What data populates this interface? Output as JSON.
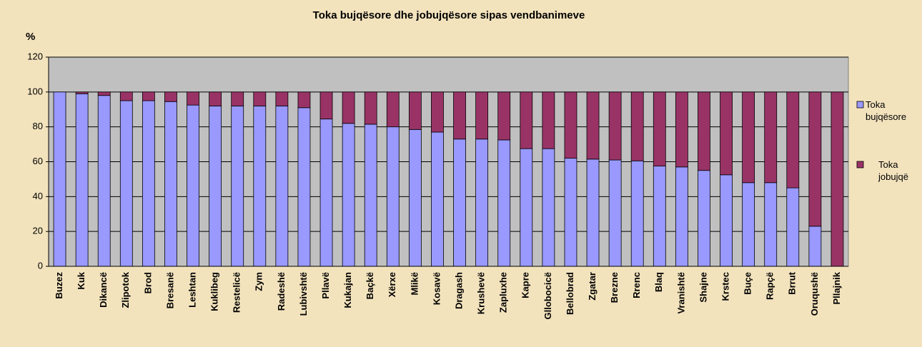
{
  "chart_data": {
    "type": "stacked_bar",
    "title": "Toka bujqësore dhe jobujqësore sipas vendbanimeve",
    "ylabel": "%",
    "categories": [
      "Buzez",
      "Kuk",
      "Dikancë",
      "Zlipotok",
      "Brod",
      "Bresanë",
      "Leshtan",
      "Kuklibeg",
      "Restelicë",
      "Zym",
      "Radeshë",
      "Lubivshtë",
      "Pllavë",
      "Kukajan",
      "Baçkë",
      "Xërxe",
      "Mlikë",
      "Kosavë",
      "Dragash",
      "Krushevë",
      "Zapluxhe",
      "Kapre",
      "Gllobocicë",
      "Bellobrad",
      "Zgatar",
      "Brezne",
      "Rrenc",
      "Blaq",
      "Vranishtë",
      "Shajne",
      "Krstec",
      "Buçe",
      "Rapçë",
      "Brrut",
      "Oruqushë",
      "Pllajnik"
    ],
    "series": [
      {
        "name": "Toka bujqësore",
        "color": "#9999ff",
        "values": [
          100,
          99,
          98,
          95,
          95,
          94.5,
          92.5,
          92,
          92,
          92,
          92,
          91,
          84.5,
          82,
          81.5,
          80,
          78.5,
          77,
          73,
          73,
          72.5,
          67.5,
          67.5,
          62,
          61.5,
          61,
          60.5,
          57.5,
          57,
          55,
          52.5,
          48,
          48,
          45,
          23,
          0
        ]
      },
      {
        "name": "Toka jobujqë",
        "color": "#993366",
        "values": [
          0,
          1,
          2,
          5,
          5,
          5.5,
          7.5,
          8,
          8,
          8,
          8,
          9,
          15.5,
          18,
          18.5,
          20,
          21.5,
          23,
          27,
          27,
          27.5,
          32.5,
          32.5,
          38,
          38.5,
          39,
          39.5,
          42.5,
          43,
          45,
          47.5,
          52,
          52,
          55,
          77,
          100
        ]
      }
    ],
    "ylim": [
      0,
      120
    ],
    "yticks": [
      0,
      20,
      40,
      60,
      80,
      100,
      120
    ],
    "grid": true
  }
}
